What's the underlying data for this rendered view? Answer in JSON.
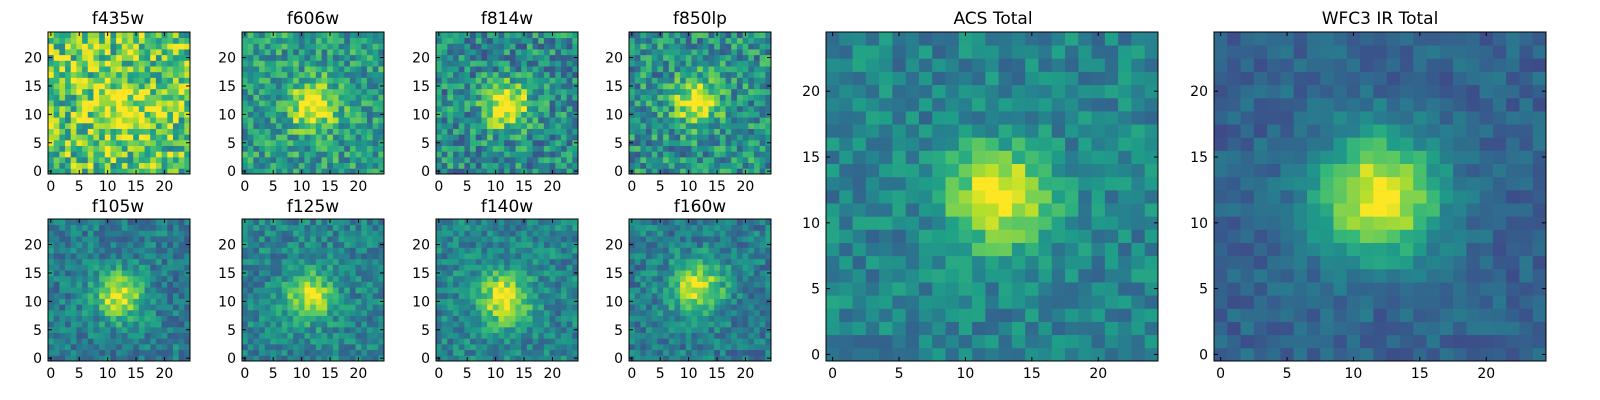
{
  "chart_data": {
    "type": "heatmap",
    "colormap": "viridis",
    "grid_size": 25,
    "xlim": [
      -0.5,
      24.5
    ],
    "ylim": [
      -0.5,
      24.5
    ],
    "panels": [
      {
        "title": "f435w",
        "center": [
          12.5,
          11.5
        ],
        "sigma": 4.0,
        "amplitude": 0.25,
        "baseline": 0.72,
        "noise": 0.3,
        "seed": 11,
        "xticks": [
          0,
          5,
          10,
          15,
          20
        ],
        "yticks": [
          0,
          5,
          10,
          15,
          20
        ]
      },
      {
        "title": "f606w",
        "center": [
          12.0,
          11.5
        ],
        "sigma": 2.8,
        "amplitude": 0.55,
        "baseline": 0.55,
        "noise": 0.22,
        "seed": 23,
        "xticks": [
          0,
          5,
          10,
          15,
          20
        ],
        "yticks": [
          0,
          5,
          10,
          15,
          20
        ]
      },
      {
        "title": "f814w",
        "center": [
          12.0,
          11.5
        ],
        "sigma": 2.8,
        "amplitude": 0.6,
        "baseline": 0.48,
        "noise": 0.24,
        "seed": 37,
        "xticks": [
          0,
          5,
          10,
          15,
          20
        ],
        "yticks": [
          0,
          5,
          10,
          15,
          20
        ]
      },
      {
        "title": "f850lp",
        "center": [
          11.5,
          12.5
        ],
        "sigma": 2.8,
        "amplitude": 0.55,
        "baseline": 0.5,
        "noise": 0.24,
        "seed": 41,
        "xticks": [
          0,
          5,
          10,
          15,
          20
        ],
        "yticks": [
          0,
          5,
          10,
          15,
          20
        ]
      },
      {
        "title": "f105w",
        "center": [
          12.0,
          11.0
        ],
        "sigma": 3.0,
        "amplitude": 0.55,
        "baseline": 0.42,
        "noise": 0.16,
        "seed": 53,
        "xticks": [
          0,
          5,
          10,
          15,
          20
        ],
        "yticks": [
          0,
          5,
          10,
          15,
          20
        ]
      },
      {
        "title": "f125w",
        "center": [
          11.5,
          11.0
        ],
        "sigma": 3.0,
        "amplitude": 0.5,
        "baseline": 0.45,
        "noise": 0.16,
        "seed": 67,
        "xticks": [
          0,
          5,
          10,
          15,
          20
        ],
        "yticks": [
          0,
          5,
          10,
          15,
          20
        ]
      },
      {
        "title": "f140w",
        "center": [
          11.5,
          10.5
        ],
        "sigma": 3.2,
        "amplitude": 0.55,
        "baseline": 0.45,
        "noise": 0.16,
        "seed": 71,
        "xticks": [
          0,
          5,
          10,
          15,
          20
        ],
        "yticks": [
          0,
          5,
          10,
          15,
          20
        ]
      },
      {
        "title": "f160w",
        "center": [
          11.5,
          12.5
        ],
        "sigma": 3.2,
        "amplitude": 0.55,
        "baseline": 0.42,
        "noise": 0.16,
        "seed": 83,
        "xticks": [
          0,
          5,
          10,
          15,
          20
        ],
        "yticks": [
          0,
          5,
          10,
          15,
          20
        ]
      },
      {
        "title": "ACS Total",
        "center": [
          12.5,
          12.0
        ],
        "sigma": 2.6,
        "amplitude": 0.6,
        "baseline": 0.45,
        "noise": 0.14,
        "seed": 97,
        "xticks": [
          0,
          5,
          10,
          15,
          20
        ],
        "yticks": [
          0,
          5,
          10,
          15,
          20
        ]
      },
      {
        "title": "WFC3 IR Total",
        "center": [
          12.0,
          12.0
        ],
        "sigma": 3.2,
        "amplitude": 0.7,
        "baseline": 0.32,
        "noise": 0.09,
        "seed": 101,
        "xticks": [
          0,
          5,
          10,
          15,
          20
        ],
        "yticks": [
          0,
          5,
          10,
          15,
          20
        ]
      }
    ]
  }
}
